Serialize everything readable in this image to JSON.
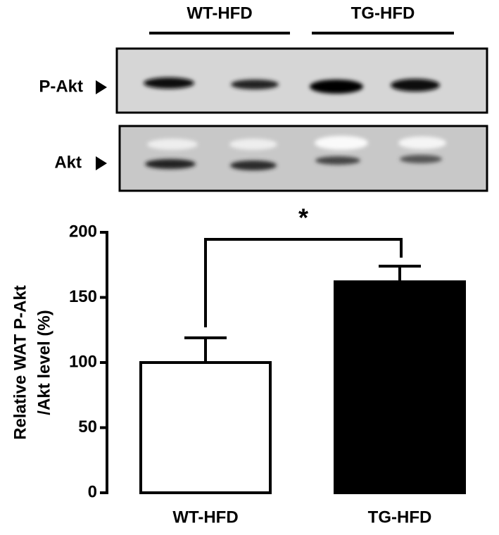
{
  "blot": {
    "groups": [
      "WT-HFD",
      "TG-HFD"
    ],
    "bands": [
      "P-Akt",
      "Akt"
    ]
  },
  "chart_data": {
    "type": "bar",
    "y_label_lines": [
      "Relative WAT P-Akt",
      "/Akt level (%)"
    ],
    "categories": [
      "WT-HFD",
      "TG-HFD"
    ],
    "values": [
      100,
      162
    ],
    "errors": [
      19,
      12
    ],
    "colors": [
      "#ffffff",
      "#000000"
    ],
    "ylim": [
      0,
      200
    ],
    "yticks": [
      0,
      50,
      100,
      150,
      200
    ],
    "significance": "*"
  }
}
